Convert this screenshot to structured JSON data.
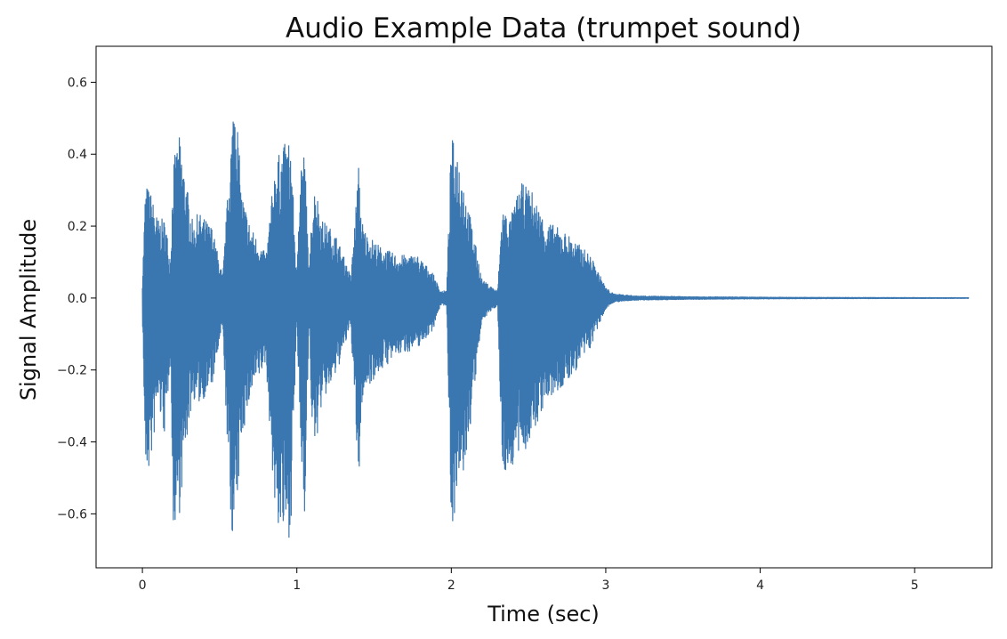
{
  "chart_data": {
    "type": "line",
    "title": "Audio Example Data (trumpet sound)",
    "xlabel": "Time (sec)",
    "ylabel": "Signal Amplitude",
    "xlim": [
      -0.3,
      5.5
    ],
    "ylim": [
      -0.75,
      0.7
    ],
    "x_ticks": [
      0,
      1,
      2,
      3,
      4,
      5
    ],
    "x_tick_labels": [
      "0",
      "1",
      "2",
      "3",
      "4",
      "5"
    ],
    "y_ticks": [
      0.6,
      0.4,
      0.2,
      0.0,
      -0.2,
      -0.4,
      -0.6
    ],
    "y_tick_labels": [
      "0.6",
      "0.4",
      "0.2",
      "0.0",
      "−0.2",
      "−0.4",
      "−0.6"
    ],
    "grid": false,
    "color": "#3a76b0",
    "series": [
      {
        "envelope": {
          "t": [
            0.0,
            0.02,
            0.05,
            0.1,
            0.15,
            0.18,
            0.2,
            0.24,
            0.3,
            0.33,
            0.36,
            0.45,
            0.52,
            0.57,
            0.6,
            0.64,
            0.7,
            0.8,
            0.86,
            0.92,
            0.96,
            1.0,
            1.02,
            1.05,
            1.08,
            1.1,
            1.12,
            1.16,
            1.25,
            1.35,
            1.4,
            1.42,
            1.45,
            1.55,
            1.65,
            1.78,
            1.88,
            1.93,
            1.97,
            2.0,
            2.05,
            2.1,
            2.2,
            2.3,
            2.33,
            2.38,
            2.45,
            2.52,
            2.6,
            2.75,
            2.9,
            3.0,
            3.05,
            3.2,
            3.5,
            3.8,
            4.2,
            5.35
          ],
          "upper": [
            0.05,
            0.32,
            0.3,
            0.22,
            0.22,
            0.1,
            0.38,
            0.45,
            0.28,
            0.2,
            0.24,
            0.2,
            0.06,
            0.42,
            0.62,
            0.3,
            0.2,
            0.12,
            0.38,
            0.43,
            0.44,
            0.05,
            0.4,
            0.42,
            0.06,
            0.28,
            0.32,
            0.22,
            0.18,
            0.06,
            0.37,
            0.22,
            0.18,
            0.14,
            0.12,
            0.12,
            0.07,
            0.02,
            0.02,
            0.45,
            0.4,
            0.28,
            0.05,
            0.02,
            0.26,
            0.22,
            0.32,
            0.3,
            0.22,
            0.18,
            0.12,
            0.03,
            0.012,
            0.006,
            0.004,
            0.003,
            0.002,
            0.001
          ],
          "lower": [
            -0.05,
            -0.5,
            -0.48,
            -0.3,
            -0.4,
            -0.15,
            -0.64,
            -0.6,
            -0.35,
            -0.28,
            -0.3,
            -0.25,
            -0.08,
            -0.64,
            -0.68,
            -0.4,
            -0.28,
            -0.18,
            -0.62,
            -0.68,
            -0.66,
            -0.06,
            -0.4,
            -0.6,
            -0.08,
            -0.4,
            -0.42,
            -0.3,
            -0.22,
            -0.08,
            -0.55,
            -0.3,
            -0.25,
            -0.2,
            -0.16,
            -0.14,
            -0.09,
            -0.02,
            -0.02,
            -0.64,
            -0.55,
            -0.45,
            -0.06,
            -0.02,
            -0.5,
            -0.48,
            -0.44,
            -0.4,
            -0.3,
            -0.24,
            -0.14,
            -0.03,
            -0.012,
            -0.006,
            -0.004,
            -0.003,
            -0.002,
            -0.001
          ]
        }
      }
    ]
  }
}
